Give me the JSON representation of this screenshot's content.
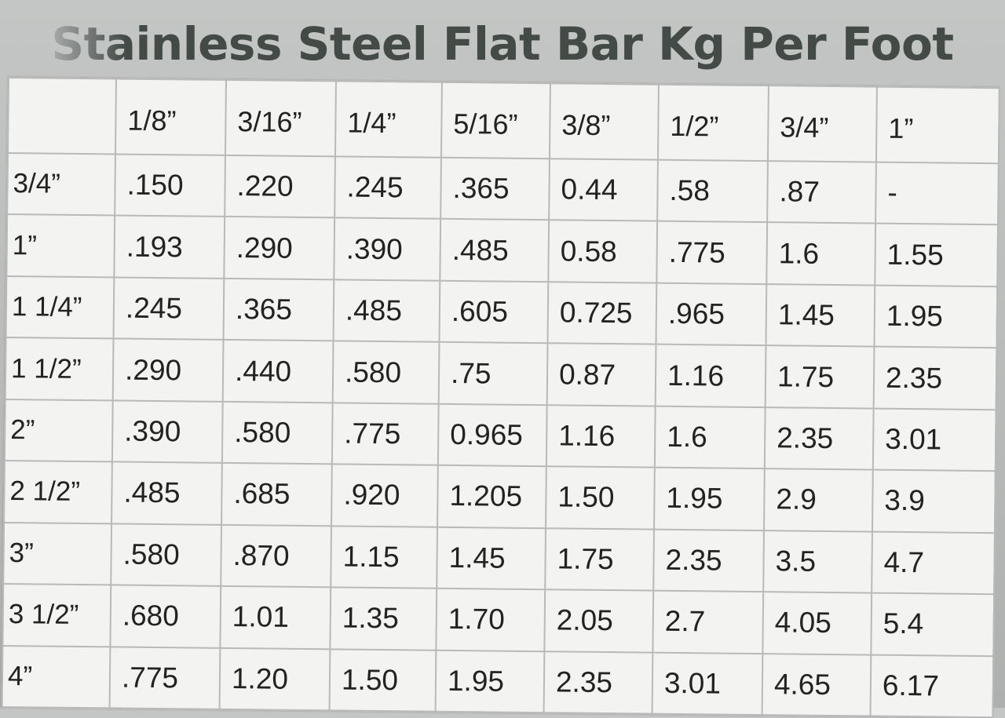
{
  "title": "Stainless Steel Flat Bar Kg Per Foot",
  "table": {
    "corner": "",
    "columns": [
      "1/8”",
      "3/16”",
      "1/4”",
      "5/16”",
      "3/8”",
      "1/2”",
      "3/4”",
      "1”"
    ],
    "rows": [
      {
        "width": "3/4”",
        "values": [
          ".150",
          ".220",
          ".245",
          ".365",
          "0.44",
          ".58",
          ".87",
          "-"
        ]
      },
      {
        "width": "1”",
        "values": [
          ".193",
          ".290",
          ".390",
          ".485",
          "0.58",
          ".775",
          "1.6",
          "1.55"
        ]
      },
      {
        "width": "1 1/4”",
        "values": [
          ".245",
          ".365",
          ".485",
          ".605",
          "0.725",
          ".965",
          "1.45",
          "1.95"
        ]
      },
      {
        "width": "1 1/2”",
        "values": [
          ".290",
          ".440",
          ".580",
          ".75",
          "0.87",
          "1.16",
          "1.75",
          "2.35"
        ]
      },
      {
        "width": "2”",
        "values": [
          ".390",
          ".580",
          ".775",
          "0.965",
          "1.16",
          "1.6",
          "2.35",
          "3.01"
        ]
      },
      {
        "width": "2 1/2”",
        "values": [
          ".485",
          ".685",
          ".920",
          "1.205",
          "1.50",
          "1.95",
          "2.9",
          "3.9"
        ]
      },
      {
        "width": "3”",
        "values": [
          ".580",
          ".870",
          "1.15",
          "1.45",
          "1.75",
          "2.35",
          "3.5",
          "4.7"
        ]
      },
      {
        "width": "3 1/2”",
        "values": [
          ".680",
          "1.01",
          "1.35",
          "1.70",
          "2.05",
          "2.7",
          "4.05",
          "5.4"
        ]
      },
      {
        "width": "4”",
        "values": [
          ".775",
          "1.20",
          "1.50",
          "1.95",
          "2.35",
          "3.01",
          "4.65",
          "6.17"
        ]
      }
    ]
  }
}
